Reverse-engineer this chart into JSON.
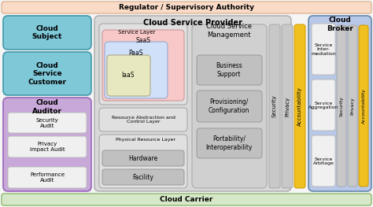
{
  "bg_color": "#f5f5f5",
  "regulator_color": "#f9dbc8",
  "regulator_text": "Regulator / Supervisory Authority",
  "carrier_color": "#d6e8c8",
  "carrier_text": "Cloud Carrier",
  "cloud_subject_color": "#7ec8d8",
  "cloud_subject_text": "Cloud\nSubject",
  "cloud_customer_color": "#7ec8d8",
  "cloud_customer_text": "Cloud\nService\nCustomer",
  "cloud_auditor_color": "#c8a8d8",
  "cloud_auditor_text": "Cloud\nAuditor",
  "cloud_broker_color": "#b8c8e8",
  "cloud_broker_text": "Cloud\nBroker",
  "csp_color": "#d8d8d8",
  "csp_text": "Cloud Service Provider",
  "service_layer_text": "Service Layer",
  "service_layer_bg": "#e0e0e0",
  "saas_color": "#f8c8c8",
  "saas_text": "SaaS",
  "paas_color": "#d0e0f8",
  "paas_text": "PaaS",
  "iaas_color": "#e8e8c0",
  "iaas_text": "IaaS",
  "resource_layer_text": "Resource Abstraction and\nControl Layer",
  "resource_layer_bg": "#e0e0e0",
  "physical_layer_text": "Physical Resource Layer",
  "physical_layer_bg": "#e0e0e0",
  "hardware_color": "#c0c0c0",
  "hardware_text": "Hardware",
  "facility_color": "#c0c0c0",
  "facility_text": "Facility",
  "csm_text": "Cloud Service\nManagement",
  "csm_color": "#d0d0d0",
  "bs_text": "Business\nSupport",
  "pc_text": "Provisioning/\nConfiguration",
  "pi_text": "Portability/\nInteroperability",
  "inner_box_gray": "#c0c0c0",
  "security_color": "#c8c8c8",
  "privacy_color": "#c8c8c8",
  "accountability_color": "#f0c020",
  "security_text": "Security",
  "privacy_text": "Privacy",
  "accountability_text": "Accountability",
  "audit_box_color": "#f0f0f0",
  "sec_audit_text": "Security\nAudit",
  "priv_audit_text": "Privacy\nImpact Audit",
  "perf_audit_text": "Performance\nAudit",
  "intermediation_text": "Service\nInter-\nmediation",
  "aggregation_text": "Service\nAggregation",
  "arbitrage_text": "Service\nArbitage",
  "border_color": "#999999",
  "left_border": "#4499aa",
  "auditor_border": "#9966bb",
  "broker_border": "#6688aa"
}
